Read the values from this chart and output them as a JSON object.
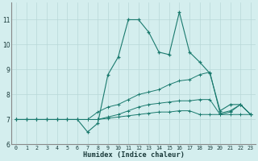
{
  "xlabel": "Humidex (Indice chaleur)",
  "x": [
    0,
    1,
    2,
    3,
    4,
    5,
    6,
    7,
    8,
    9,
    10,
    11,
    12,
    13,
    14,
    15,
    16,
    17,
    18,
    19,
    20,
    21,
    22,
    23
  ],
  "line1": [
    7.0,
    7.0,
    7.0,
    7.0,
    7.0,
    7.0,
    7.0,
    6.5,
    6.85,
    8.8,
    9.5,
    11.0,
    11.0,
    10.5,
    9.7,
    9.6,
    11.3,
    9.7,
    9.3,
    8.85,
    7.35,
    7.6,
    7.6,
    7.2
  ],
  "line2": [
    7.0,
    7.0,
    7.0,
    7.0,
    7.0,
    7.0,
    7.0,
    7.0,
    7.3,
    7.5,
    7.6,
    7.8,
    8.0,
    8.1,
    8.2,
    8.4,
    8.55,
    8.6,
    8.8,
    8.9,
    7.25,
    7.35,
    7.6,
    7.2
  ],
  "line3": [
    7.0,
    7.0,
    7.0,
    7.0,
    7.0,
    7.0,
    7.0,
    7.0,
    7.0,
    7.1,
    7.2,
    7.35,
    7.5,
    7.6,
    7.65,
    7.7,
    7.75,
    7.75,
    7.8,
    7.8,
    7.2,
    7.3,
    7.6,
    7.2
  ],
  "line4": [
    7.0,
    7.0,
    7.0,
    7.0,
    7.0,
    7.0,
    7.0,
    7.0,
    7.0,
    7.05,
    7.1,
    7.15,
    7.2,
    7.25,
    7.3,
    7.3,
    7.35,
    7.35,
    7.2,
    7.2,
    7.2,
    7.2,
    7.2,
    7.2
  ],
  "line_color": "#1a7a6e",
  "bg_color": "#d4eeee",
  "grid_color": "#b8d8d8",
  "ylim": [
    6.0,
    11.7
  ],
  "yticks": [
    6,
    7,
    8,
    9,
    10,
    11
  ],
  "xlim": [
    -0.5,
    23.5
  ]
}
